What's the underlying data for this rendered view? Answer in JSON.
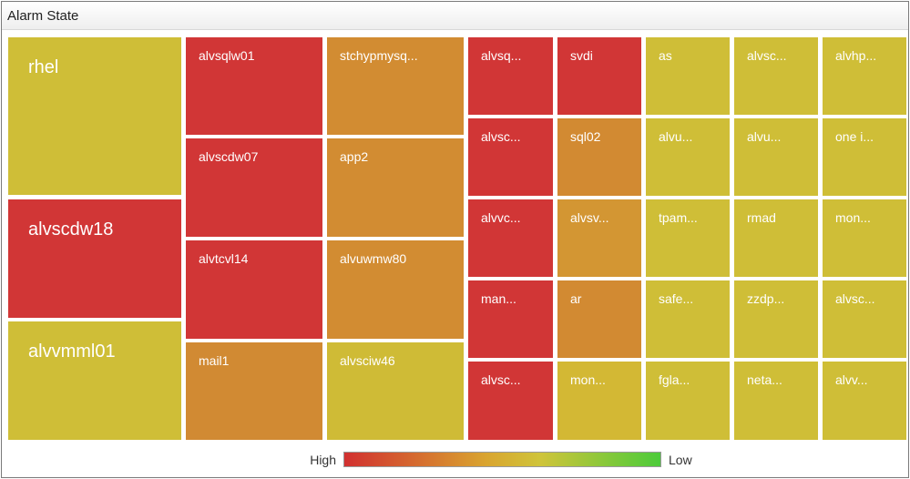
{
  "panel": {
    "title": "Alarm State",
    "columns": [
      [
        {
          "label": "rhel",
          "color": "#cfbe37"
        },
        {
          "label": "alvscdw18",
          "color": "#d13636"
        },
        {
          "label": "alvvmml01",
          "color": "#cfbe37"
        }
      ],
      [
        {
          "label": "alvsqlw01",
          "color": "#d13636"
        },
        {
          "label": "alvscdw07",
          "color": "#d13636"
        },
        {
          "label": "alvtcvl14",
          "color": "#d13636"
        },
        {
          "label": "mail1",
          "color": "#d18a33"
        }
      ],
      [
        {
          "label": "stchypmysq...",
          "color": "#d28c32"
        },
        {
          "label": "app2",
          "color": "#d28c32"
        },
        {
          "label": "alvuwmw80",
          "color": "#d28c32"
        },
        {
          "label": "alvsciw46",
          "color": "#cfbb36"
        }
      ],
      [
        {
          "label": "alvsq...",
          "color": "#d13636"
        },
        {
          "label": "alvsc...",
          "color": "#d13636"
        },
        {
          "label": "alvvc...",
          "color": "#d13636"
        },
        {
          "label": "man...",
          "color": "#d13636"
        },
        {
          "label": "alvsc...",
          "color": "#d13636"
        }
      ],
      [
        {
          "label": "svdi",
          "color": "#d13636"
        },
        {
          "label": "sql02",
          "color": "#d28a32"
        },
        {
          "label": "alvsv...",
          "color": "#d39633"
        },
        {
          "label": "ar",
          "color": "#d28a32"
        },
        {
          "label": "mon...",
          "color": "#d3b834"
        }
      ],
      [
        {
          "label": "as",
          "color": "#cfbe37"
        },
        {
          "label": "alvu...",
          "color": "#cfbe37"
        },
        {
          "label": "tpam...",
          "color": "#cfbe37"
        },
        {
          "label": "safe...",
          "color": "#cfbe37"
        },
        {
          "label": "fgla...",
          "color": "#cfbe37"
        }
      ],
      [
        {
          "label": "alvsc...",
          "color": "#cfbe37"
        },
        {
          "label": "alvu...",
          "color": "#cfbe37"
        },
        {
          "label": "rmad",
          "color": "#cfbe37"
        },
        {
          "label": "zzdp...",
          "color": "#cfbe37"
        },
        {
          "label": "neta...",
          "color": "#cfbe37"
        }
      ],
      [
        {
          "label": "alvhp...",
          "color": "#cfbe37"
        },
        {
          "label": "one i...",
          "color": "#cfbe37"
        },
        {
          "label": "mon...",
          "color": "#cfbe37"
        },
        {
          "label": "alvsc...",
          "color": "#cfbe37"
        },
        {
          "label": "alvv...",
          "color": "#cfbe37"
        }
      ]
    ],
    "legend": {
      "high": "High",
      "low": "Low"
    }
  }
}
